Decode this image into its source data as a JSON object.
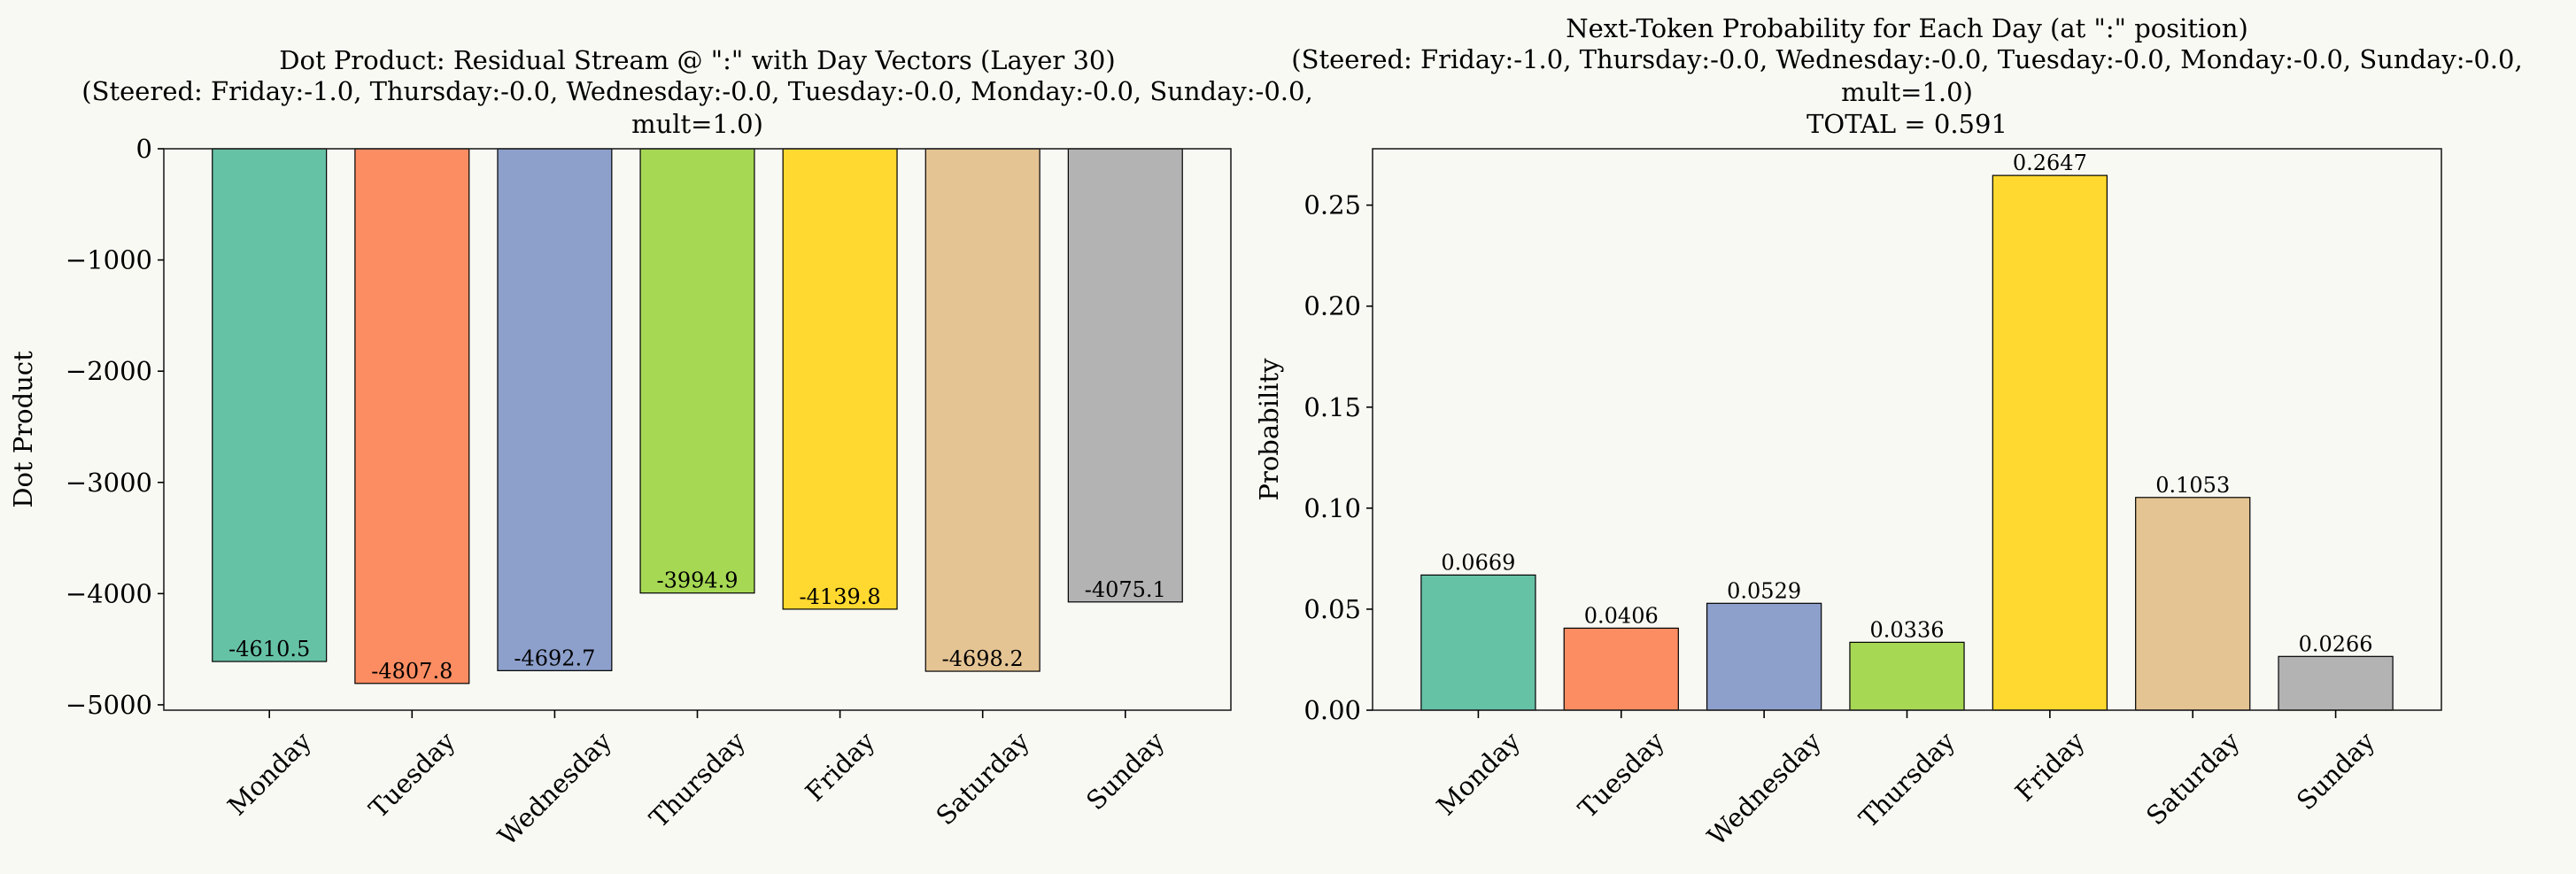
{
  "background": "#f9f9f4",
  "chart_data": [
    {
      "type": "bar",
      "title": [
        "Dot Product: Residual Stream @ \":\" with Day Vectors (Layer 30)",
        "(Steered: Friday:-1.0, Thursday:-0.0, Wednesday:-0.0, Tuesday:-0.0, Monday:-0.0, Sunday:-0.0,",
        "mult=1.0)"
      ],
      "xlabel": "",
      "ylabel": "Dot Product",
      "categories": [
        "Monday",
        "Tuesday",
        "Wednesday",
        "Thursday",
        "Friday",
        "Saturday",
        "Sunday"
      ],
      "values": [
        -4610.5,
        -4807.8,
        -4692.7,
        -3994.9,
        -4139.8,
        -4698.2,
        -4075.1
      ],
      "data_labels": [
        "-4610.5",
        "-4807.8",
        "-4692.7",
        "-3994.9",
        "-4139.8",
        "-4698.2",
        "-4075.1"
      ],
      "colors": [
        "#66c2a5",
        "#fc8d62",
        "#8da0cb",
        "#a6d854",
        "#ffd92f",
        "#e5c494",
        "#b3b3b3"
      ],
      "ylim": [
        -5048.2,
        0
      ],
      "yticks": [
        0,
        -1000,
        -2000,
        -3000,
        -4000,
        -5000
      ],
      "ytick_labels": [
        "0",
        "−1000",
        "−2000",
        "−3000",
        "−4000",
        "−5000"
      ],
      "grid": false
    },
    {
      "type": "bar",
      "title": [
        "Next-Token Probability for Each Day (at \":\" position)",
        "(Steered: Friday:-1.0, Thursday:-0.0, Wednesday:-0.0, Tuesday:-0.0, Monday:-0.0, Sunday:-0.0,",
        "mult=1.0)",
        "TOTAL  =  0.591"
      ],
      "xlabel": "",
      "ylabel": "Probability",
      "categories": [
        "Monday",
        "Tuesday",
        "Wednesday",
        "Thursday",
        "Friday",
        "Saturday",
        "Sunday"
      ],
      "values": [
        0.0669,
        0.0406,
        0.0529,
        0.0336,
        0.2647,
        0.1053,
        0.0266
      ],
      "data_labels": [
        "0.0669",
        "0.0406",
        "0.0529",
        "0.0336",
        "0.2647",
        "0.1053",
        "0.0266"
      ],
      "colors": [
        "#66c2a5",
        "#fc8d62",
        "#8da0cb",
        "#a6d854",
        "#ffd92f",
        "#e5c494",
        "#b3b3b3"
      ],
      "ylim": [
        0,
        0.2779
      ],
      "yticks": [
        0,
        0.05,
        0.1,
        0.15,
        0.2,
        0.25
      ],
      "ytick_labels": [
        "0.00",
        "0.05",
        "0.10",
        "0.15",
        "0.20",
        "0.25"
      ],
      "grid": false
    }
  ]
}
